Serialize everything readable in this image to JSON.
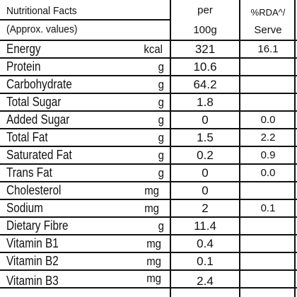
{
  "header": {
    "title_line1": "Nutritional Facts",
    "title_line2": "(Approx. values)",
    "per_line1": "per",
    "per_line2": "100g",
    "rda_line1": "%RDA^/",
    "rda_line2": "Serve"
  },
  "rows": [
    {
      "name": "Energy",
      "unit": "kcal",
      "value": "321",
      "rda": "16.1"
    },
    {
      "name": "Protein",
      "unit": "g",
      "value": "10.6",
      "rda": ""
    },
    {
      "name": "Carbohydrate",
      "unit": "g",
      "value": "64.2",
      "rda": ""
    },
    {
      "name": "Total Sugar",
      "unit": "g",
      "value": "1.8",
      "rda": ""
    },
    {
      "name": "Added Sugar",
      "unit": "g",
      "value": "0",
      "rda": "0.0"
    },
    {
      "name": "Total Fat",
      "unit": "g",
      "value": "1.5",
      "rda": "2.2"
    },
    {
      "name": "Saturated Fat",
      "unit": "g",
      "value": "0.2",
      "rda": "0.9"
    },
    {
      "name": "Trans Fat",
      "unit": "g",
      "value": "0",
      "rda": "0.0"
    },
    {
      "name": "Cholesterol",
      "unit": "mg",
      "value": "0",
      "rda": ""
    },
    {
      "name": "Sodium",
      "unit": "mg",
      "value": "2",
      "rda": "0.1"
    },
    {
      "name": "Dietary Fibre",
      "unit": "g",
      "value": "11.4",
      "rda": ""
    },
    {
      "name": "Vitamin B1",
      "unit": "mg",
      "value": "0.4",
      "rda": ""
    },
    {
      "name": "Vitamin B2",
      "unit": "mg",
      "value": "0.1",
      "rda": ""
    },
    {
      "name": "Vitamin B3",
      "unit": "mg",
      "value": "2.4",
      "rda": ""
    }
  ]
}
